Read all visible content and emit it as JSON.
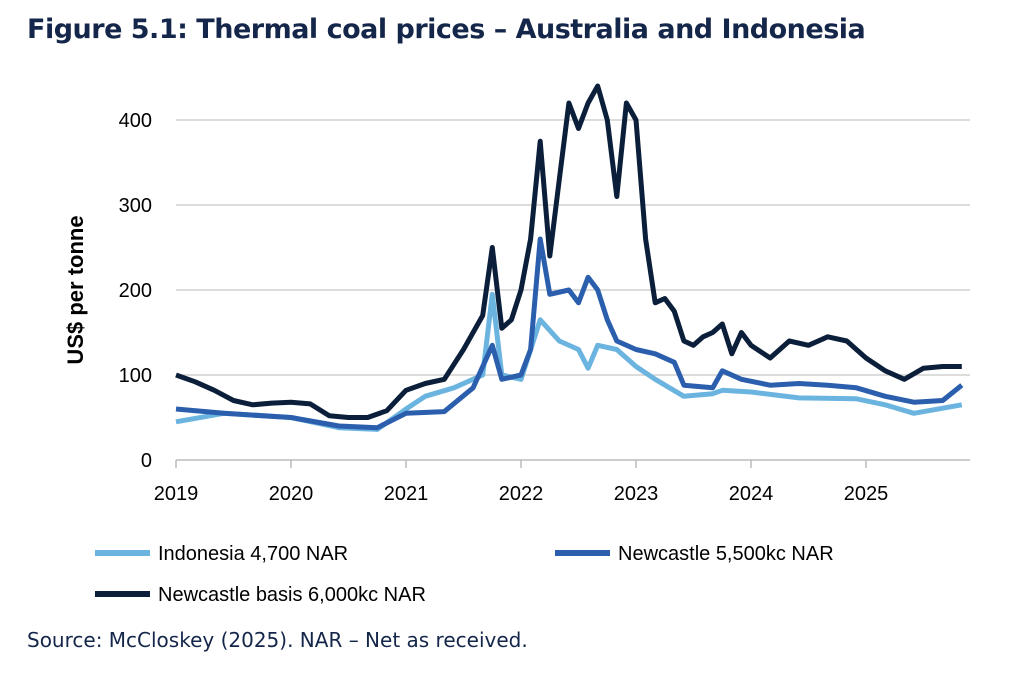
{
  "title": "Figure 5.1: Thermal coal prices – Australia and Indonesia",
  "source": "Source: McCloskey (2025). NAR – Net as received.",
  "chart_data": {
    "type": "line",
    "title": "Figure 5.1: Thermal coal prices – Australia and Indonesia",
    "xlabel": "",
    "ylabel": "US$ per tonne",
    "ylim": [
      0,
      450
    ],
    "yticks": [
      0,
      100,
      200,
      300,
      400
    ],
    "xticks": [
      "2019",
      "2020",
      "2021",
      "2022",
      "2023",
      "2024",
      "2025"
    ],
    "grid": true,
    "legend": "bottom",
    "series": [
      {
        "name": "Indonesia 4,700 NAR",
        "color": "#6cb4e0",
        "points": [
          [
            "2019-01",
            45
          ],
          [
            "2019-06",
            55
          ],
          [
            "2020-01",
            50
          ],
          [
            "2020-06",
            38
          ],
          [
            "2020-10",
            36
          ],
          [
            "2021-01",
            60
          ],
          [
            "2021-03",
            75
          ],
          [
            "2021-06",
            85
          ],
          [
            "2021-09",
            100
          ],
          [
            "2021-10",
            195
          ],
          [
            "2021-11",
            100
          ],
          [
            "2022-01",
            95
          ],
          [
            "2022-03",
            165
          ],
          [
            "2022-05",
            140
          ],
          [
            "2022-07",
            130
          ],
          [
            "2022-08",
            108
          ],
          [
            "2022-09",
            135
          ],
          [
            "2022-11",
            130
          ],
          [
            "2023-01",
            110
          ],
          [
            "2023-03",
            95
          ],
          [
            "2023-06",
            75
          ],
          [
            "2023-09",
            78
          ],
          [
            "2023-10",
            82
          ],
          [
            "2024-01",
            80
          ],
          [
            "2024-06",
            73
          ],
          [
            "2024-12",
            72
          ],
          [
            "2025-03",
            65
          ],
          [
            "2025-06",
            55
          ],
          [
            "2025-11",
            65
          ]
        ]
      },
      {
        "name": "Newcastle 5,500kc NAR",
        "color": "#2b5fad",
        "points": [
          [
            "2019-01",
            60
          ],
          [
            "2019-06",
            55
          ],
          [
            "2020-01",
            50
          ],
          [
            "2020-06",
            40
          ],
          [
            "2020-10",
            38
          ],
          [
            "2021-01",
            55
          ],
          [
            "2021-05",
            57
          ],
          [
            "2021-08",
            85
          ],
          [
            "2021-10",
            135
          ],
          [
            "2021-11",
            95
          ],
          [
            "2022-01",
            100
          ],
          [
            "2022-02",
            130
          ],
          [
            "2022-03",
            260
          ],
          [
            "2022-04",
            195
          ],
          [
            "2022-06",
            200
          ],
          [
            "2022-07",
            185
          ],
          [
            "2022-08",
            215
          ],
          [
            "2022-09",
            200
          ],
          [
            "2022-10",
            165
          ],
          [
            "2022-11",
            140
          ],
          [
            "2023-01",
            130
          ],
          [
            "2023-03",
            125
          ],
          [
            "2023-05",
            115
          ],
          [
            "2023-06",
            88
          ],
          [
            "2023-09",
            85
          ],
          [
            "2023-10",
            105
          ],
          [
            "2023-12",
            95
          ],
          [
            "2024-03",
            88
          ],
          [
            "2024-06",
            90
          ],
          [
            "2024-09",
            88
          ],
          [
            "2024-12",
            85
          ],
          [
            "2025-03",
            75
          ],
          [
            "2025-06",
            68
          ],
          [
            "2025-09",
            70
          ],
          [
            "2025-11",
            88
          ]
        ]
      },
      {
        "name": "Newcastle basis 6,000kc NAR",
        "color": "#0b1f3a",
        "points": [
          [
            "2019-01",
            100
          ],
          [
            "2019-03",
            92
          ],
          [
            "2019-05",
            82
          ],
          [
            "2019-07",
            70
          ],
          [
            "2019-09",
            65
          ],
          [
            "2019-11",
            67
          ],
          [
            "2020-01",
            68
          ],
          [
            "2020-03",
            66
          ],
          [
            "2020-05",
            52
          ],
          [
            "2020-07",
            50
          ],
          [
            "2020-09",
            50
          ],
          [
            "2020-11",
            58
          ],
          [
            "2021-01",
            82
          ],
          [
            "2021-03",
            90
          ],
          [
            "2021-05",
            95
          ],
          [
            "2021-07",
            130
          ],
          [
            "2021-09",
            170
          ],
          [
            "2021-10",
            250
          ],
          [
            "2021-11",
            155
          ],
          [
            "2021-12",
            165
          ],
          [
            "2022-01",
            200
          ],
          [
            "2022-02",
            260
          ],
          [
            "2022-03",
            375
          ],
          [
            "2022-04",
            240
          ],
          [
            "2022-05",
            330
          ],
          [
            "2022-06",
            420
          ],
          [
            "2022-07",
            390
          ],
          [
            "2022-08",
            420
          ],
          [
            "2022-09",
            440
          ],
          [
            "2022-10",
            400
          ],
          [
            "2022-11",
            310
          ],
          [
            "2022-12",
            420
          ],
          [
            "2023-01",
            400
          ],
          [
            "2023-02",
            260
          ],
          [
            "2023-03",
            185
          ],
          [
            "2023-04",
            190
          ],
          [
            "2023-05",
            175
          ],
          [
            "2023-06",
            140
          ],
          [
            "2023-07",
            135
          ],
          [
            "2023-08",
            145
          ],
          [
            "2023-09",
            150
          ],
          [
            "2023-10",
            160
          ],
          [
            "2023-11",
            125
          ],
          [
            "2023-12",
            150
          ],
          [
            "2024-01",
            135
          ],
          [
            "2024-03",
            120
          ],
          [
            "2024-05",
            140
          ],
          [
            "2024-07",
            135
          ],
          [
            "2024-09",
            145
          ],
          [
            "2024-11",
            140
          ],
          [
            "2025-01",
            120
          ],
          [
            "2025-03",
            105
          ],
          [
            "2025-05",
            95
          ],
          [
            "2025-07",
            108
          ],
          [
            "2025-09",
            110
          ],
          [
            "2025-11",
            110
          ]
        ]
      }
    ]
  }
}
